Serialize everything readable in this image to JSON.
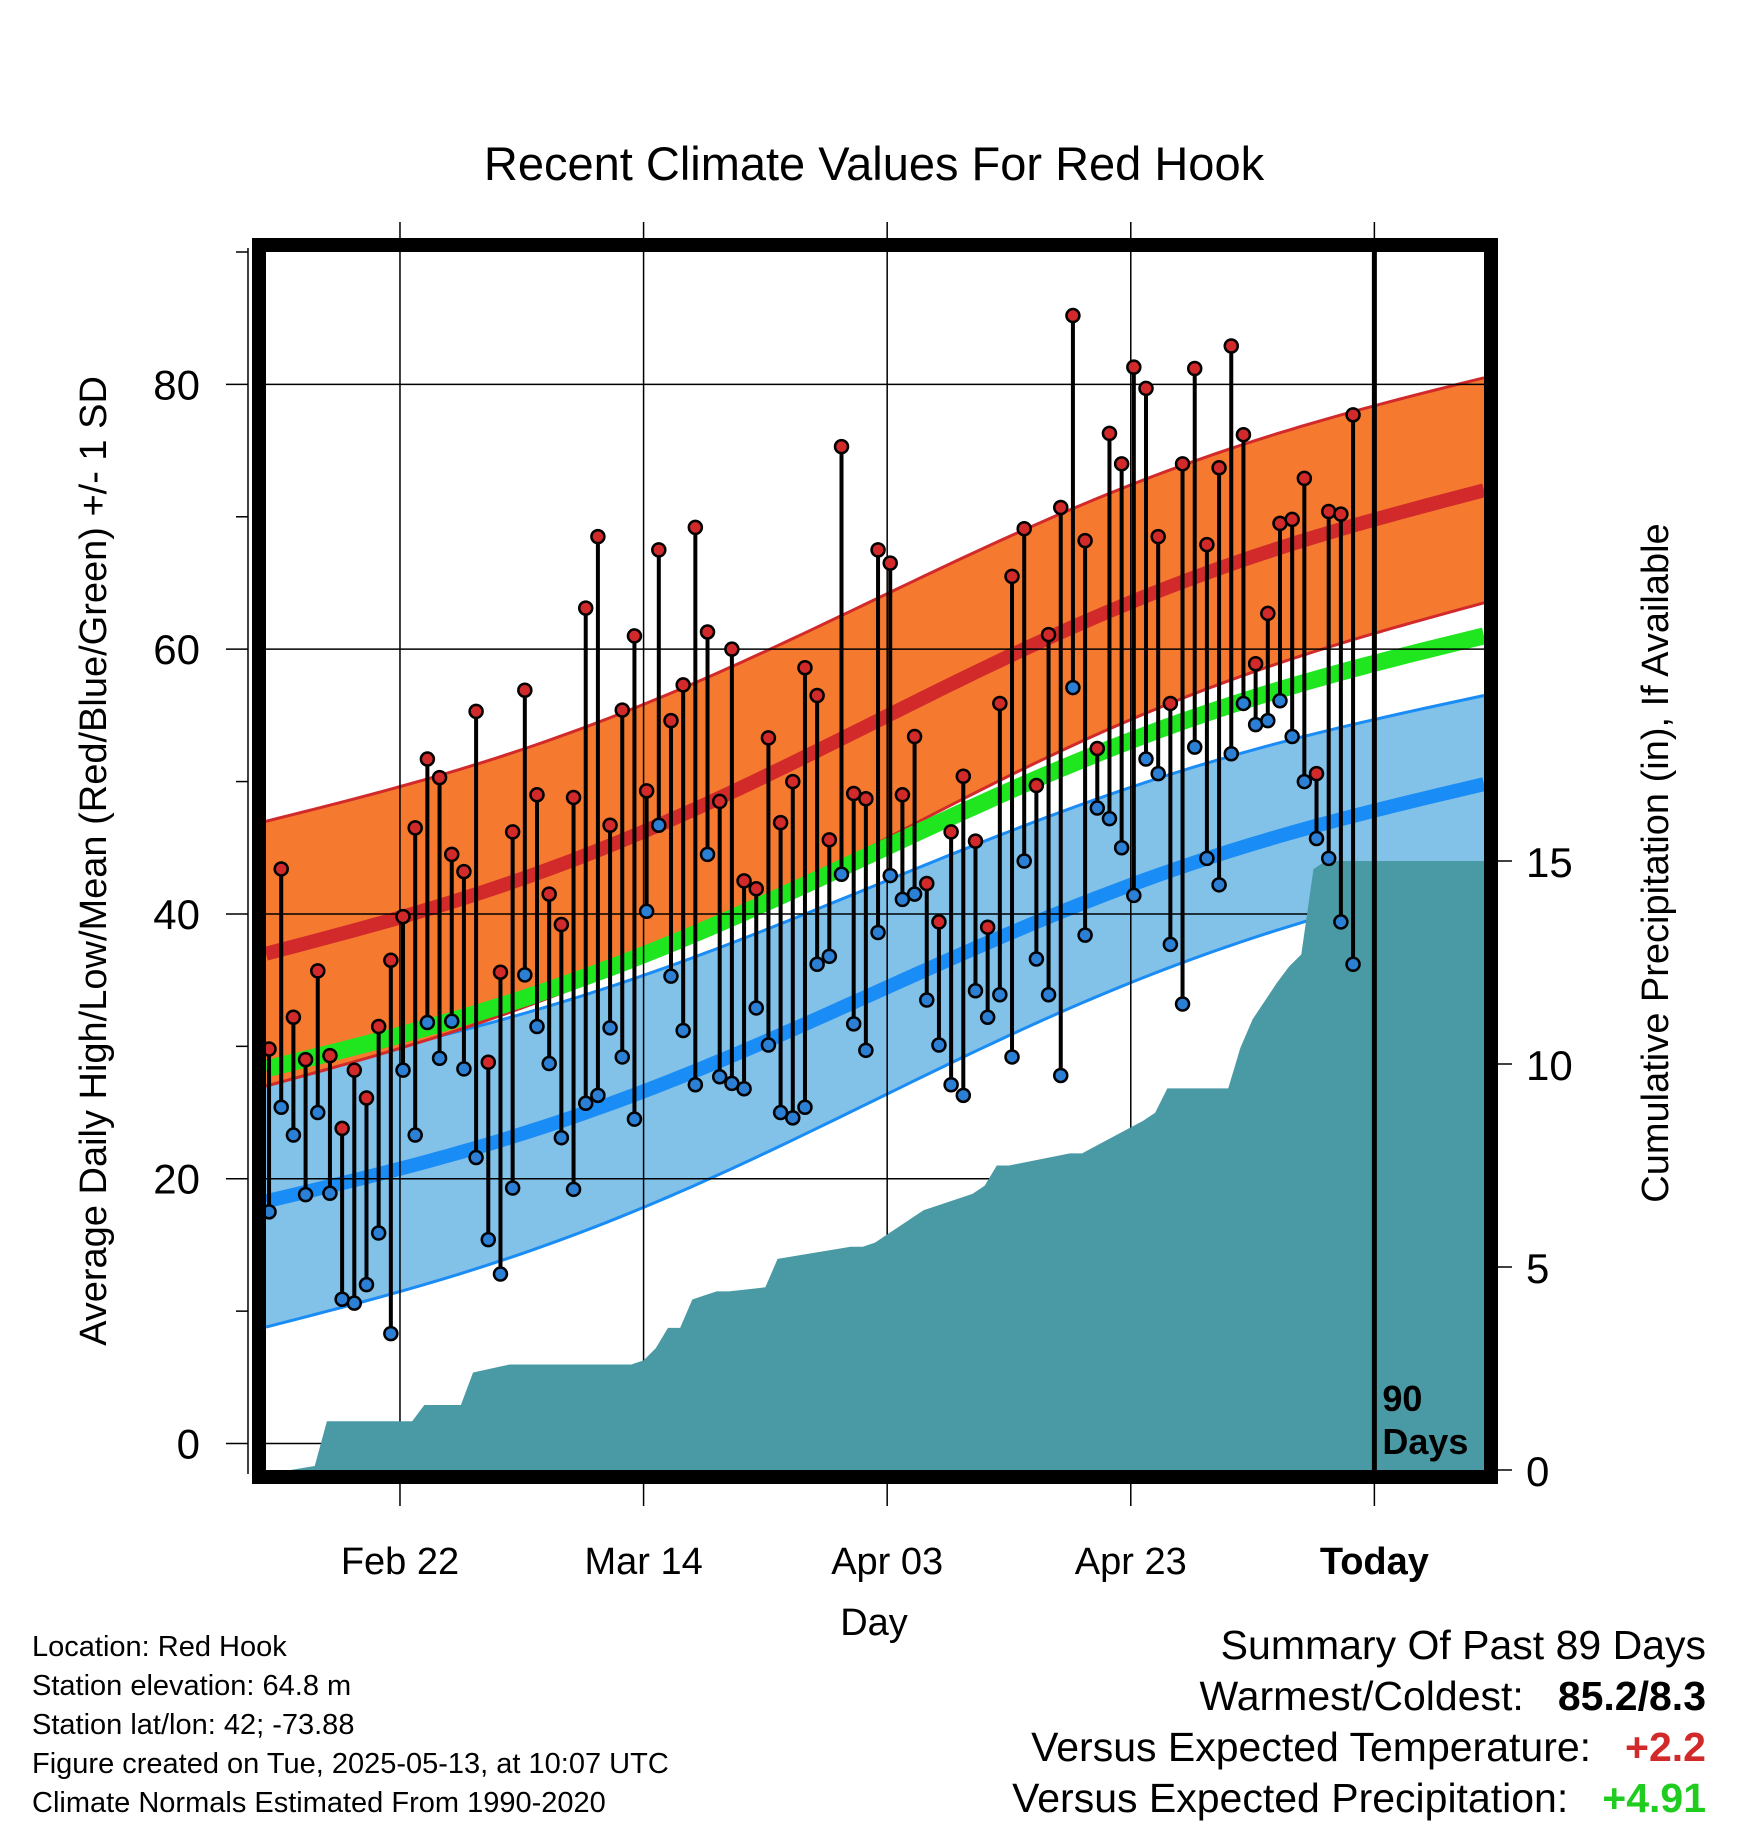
{
  "chart_data": {
    "type": "line",
    "title": "Recent Climate Values For Red Hook",
    "xlabel": "Day",
    "ylabel": "Average Daily High/Low/Mean (Red/Blue/Green) +/- 1 SD",
    "y2label": "Cumulative Precipitation (in), If Available",
    "x_tick_labels": [
      "Feb 22",
      "Mar 14",
      "Apr 03",
      "Apr 23",
      "Today"
    ],
    "x_tick_dates": [
      "2025-02-22",
      "2025-03-14",
      "2025-04-03",
      "2025-04-23",
      "2025-05-13"
    ],
    "x_range": [
      "2025-02-11",
      "2025-05-22"
    ],
    "ylim": [
      -2,
      90
    ],
    "y_ticks": [
      0,
      20,
      40,
      60,
      80
    ],
    "y2lim": [
      0,
      30
    ],
    "y2_ticks": [
      0,
      5,
      10,
      15
    ],
    "grid": true,
    "today_marker_label": "90\nDays",
    "colors": {
      "high_band": "#f57a30",
      "high_line": "#d22a2a",
      "low_band": "#82c1e8",
      "low_line": "#1a8cf5",
      "mean_line": "#1fe61f",
      "precip": "#4a9aa5",
      "high_dot": "#d22a2a",
      "low_dot": "#2b7fd4"
    },
    "normal_high": {
      "dates": [
        "2025-02-11",
        "2025-05-22"
      ],
      "values": [
        37.0,
        72.0
      ],
      "sd": [
        10.0,
        8.5
      ]
    },
    "normal_low": {
      "dates": [
        "2025-02-11",
        "2025-05-22"
      ],
      "values": [
        18.3,
        49.8
      ],
      "sd": [
        9.5,
        6.7
      ]
    },
    "normal_mean": {
      "dates": [
        "2025-02-11",
        "2025-05-22"
      ],
      "values": [
        28.3,
        61.0
      ]
    },
    "daily": {
      "start_date": "2025-02-11",
      "high": [
        29.8,
        43.4,
        32.2,
        29.0,
        35.7,
        29.3,
        23.8,
        28.2,
        26.1,
        31.5,
        36.5,
        39.8,
        46.5,
        51.7,
        50.3,
        44.5,
        43.2,
        55.3,
        28.8,
        35.6,
        46.2,
        56.9,
        49.0,
        41.5,
        39.2,
        48.8,
        63.1,
        68.5,
        46.7,
        55.4,
        61.0,
        49.3,
        67.5,
        54.6,
        57.3,
        69.2,
        61.3,
        48.5,
        60.0,
        42.5,
        41.9,
        53.3,
        46.9,
        50.0,
        58.6,
        56.5,
        45.6,
        75.3,
        49.1,
        48.7,
        67.5,
        66.5,
        49.0,
        53.4,
        42.3,
        39.4,
        46.2,
        50.4,
        45.5,
        39.0,
        55.9,
        65.5,
        69.1,
        49.7,
        61.1,
        70.7,
        85.2,
        68.2,
        52.5,
        76.3,
        74.0,
        81.3,
        79.7,
        68.5,
        55.9,
        74.0,
        81.2,
        67.9,
        73.7,
        82.9,
        76.2,
        58.9,
        62.7,
        69.5,
        69.8,
        72.9,
        50.6,
        70.4,
        70.2,
        77.7
      ],
      "low": [
        17.5,
        25.4,
        23.3,
        18.8,
        25.0,
        18.9,
        10.9,
        10.6,
        12.0,
        15.9,
        8.3,
        28.2,
        23.3,
        31.8,
        29.1,
        31.9,
        28.3,
        21.6,
        15.4,
        12.8,
        19.3,
        35.4,
        31.5,
        28.7,
        23.1,
        19.2,
        25.7,
        26.3,
        31.4,
        29.2,
        24.5,
        40.2,
        46.7,
        35.3,
        31.2,
        27.1,
        44.5,
        27.7,
        27.2,
        26.8,
        32.9,
        30.1,
        25.0,
        24.6,
        25.4,
        36.2,
        36.8,
        43.0,
        31.7,
        29.7,
        38.6,
        42.9,
        41.1,
        41.5,
        33.5,
        30.1,
        27.1,
        26.3,
        34.2,
        32.2,
        33.9,
        29.2,
        44.0,
        36.6,
        33.9,
        27.8,
        57.1,
        38.4,
        48.0,
        47.2,
        45.0,
        41.4,
        51.7,
        50.6,
        37.7,
        33.2,
        52.6,
        44.2,
        42.2,
        52.1,
        55.9,
        54.3,
        54.6,
        56.1,
        53.4,
        50.0,
        45.7,
        44.2,
        39.4,
        36.2
      ]
    },
    "precip_cumulative": {
      "dates": [
        "2025-02-11",
        "2025-02-13",
        "2025-02-15",
        "2025-02-16",
        "2025-02-23",
        "2025-02-24",
        "2025-02-27",
        "2025-02-28",
        "2025-03-03",
        "2025-03-04",
        "2025-03-05",
        "2025-03-06",
        "2025-03-13",
        "2025-03-14",
        "2025-03-15",
        "2025-03-16",
        "2025-03-17",
        "2025-03-18",
        "2025-03-19",
        "2025-03-20",
        "2025-03-21",
        "2025-03-24",
        "2025-03-25",
        "2025-03-31",
        "2025-04-01",
        "2025-04-02",
        "2025-04-04",
        "2025-04-06",
        "2025-04-07",
        "2025-04-10",
        "2025-04-11",
        "2025-04-12",
        "2025-04-13",
        "2025-04-18",
        "2025-04-19",
        "2025-04-24",
        "2025-04-25",
        "2025-04-26",
        "2025-05-01",
        "2025-05-02",
        "2025-05-03",
        "2025-05-05",
        "2025-05-06",
        "2025-05-07",
        "2025-05-08",
        "2025-05-09",
        "2025-05-14",
        "2025-05-22"
      ],
      "values": [
        0,
        0,
        0.1,
        1.2,
        1.2,
        1.6,
        1.6,
        2.4,
        2.6,
        2.6,
        2.6,
        2.6,
        2.6,
        2.7,
        3.0,
        3.5,
        3.5,
        4.2,
        4.3,
        4.4,
        4.4,
        4.5,
        5.2,
        5.5,
        5.5,
        5.6,
        6.0,
        6.4,
        6.5,
        6.8,
        7.0,
        7.5,
        7.5,
        7.8,
        7.8,
        8.6,
        8.8,
        9.4,
        9.4,
        10.4,
        11.1,
        12.0,
        12.4,
        12.7,
        14.8,
        15.0,
        15.0,
        15.0
      ]
    }
  },
  "footer": {
    "location": "Location: Red Hook",
    "elevation": "Station elevation: 64.8 m",
    "latlon": "Station lat/lon: 42; -73.88",
    "created": "Figure created on Tue, 2025-05-13, at 10:07 UTC",
    "normals": "Climate Normals Estimated From 1990-2020"
  },
  "summary": {
    "heading": "Summary Of Past 89 Days",
    "warmest_coldest_label": "Warmest/Coldest:",
    "warmest_coldest_value": "85.2/8.3",
    "temp_label": "Versus Expected Temperature:",
    "temp_value": "+2.2",
    "temp_color": "#d22a2a",
    "precip_label": "Versus Expected Precipitation:",
    "precip_value": "+4.91",
    "precip_color": "#1fcc1f"
  }
}
